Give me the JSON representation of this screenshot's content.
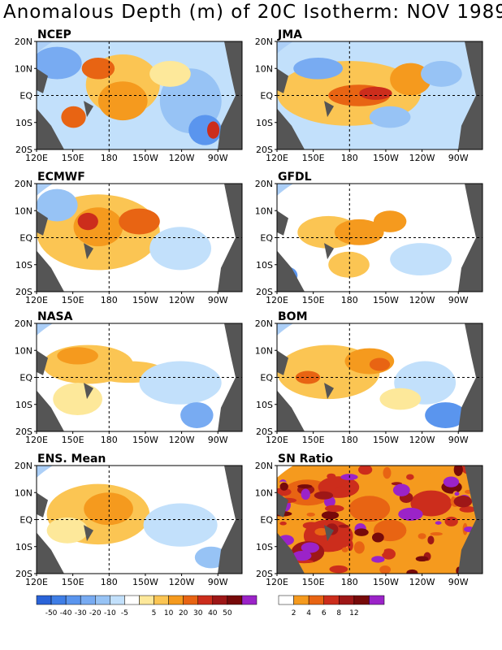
{
  "title": "Anomalous Depth (m) of 20C Isotherm: NOV 1989",
  "axes": {
    "lat_labels": [
      "20N",
      "10N",
      "EQ",
      "10S",
      "20S"
    ],
    "lon_labels": [
      "120E",
      "150E",
      "180",
      "150W",
      "120W",
      "90W"
    ]
  },
  "colors": {
    "land": "#555555",
    "anomaly_scale": [
      "#2a63d8",
      "#3f7ee6",
      "#5a95ee",
      "#78abf2",
      "#97c3f5",
      "#c2e0fb",
      "#ffffff",
      "#fde89a",
      "#fbc553",
      "#f59a1e",
      "#e86413",
      "#cc2d1c",
      "#9e1717",
      "#770a0a",
      "#9b23c8"
    ],
    "sn_scale": [
      "#ffffff",
      "#f59a1e",
      "#e86413",
      "#cc2d1c",
      "#9e1717",
      "#770a0a",
      "#9b23c8"
    ]
  },
  "panels": [
    {
      "name": "NCEP"
    },
    {
      "name": "JMA"
    },
    {
      "name": "ECMWF"
    },
    {
      "name": "GFDL"
    },
    {
      "name": "NASA"
    },
    {
      "name": "BOM"
    },
    {
      "name": "ENS. Mean"
    },
    {
      "name": "SN Ratio"
    }
  ],
  "colorbar_anomaly": {
    "labels": [
      "-50",
      "-40",
      "-30",
      "-20",
      "-10",
      "-5",
      "5",
      "10",
      "20",
      "30",
      "40",
      "50"
    ]
  },
  "colorbar_sn": {
    "labels": [
      "2",
      "4",
      "6",
      "8",
      "12"
    ]
  },
  "chart_data": {
    "type": "heatmap",
    "title": "Anomalous Depth (m) of 20C Isotherm: NOV 1989",
    "panels": [
      "NCEP",
      "JMA",
      "ECMWF",
      "GFDL",
      "NASA",
      "BOM",
      "ENS. Mean",
      "SN Ratio"
    ],
    "x_ticks": [
      "120E",
      "150E",
      "180",
      "150W",
      "120W",
      "90W"
    ],
    "y_ticks": [
      "20N",
      "10N",
      "EQ",
      "10S",
      "20S"
    ],
    "anomaly_levels": [
      -50,
      -40,
      -30,
      -20,
      -10,
      -5,
      5,
      10,
      20,
      30,
      40,
      50
    ],
    "sn_levels": [
      2,
      4,
      6,
      8,
      12
    ]
  }
}
